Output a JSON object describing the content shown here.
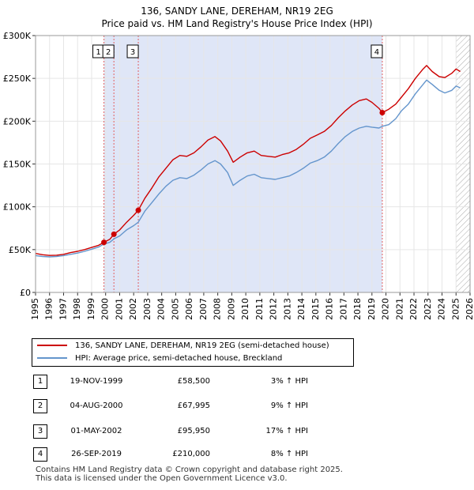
{
  "header": {
    "title": "136, SANDY LANE, DEREHAM, NR19 2EG",
    "subtitle": "Price paid vs. HM Land Registry's House Price Index (HPI)"
  },
  "chart_data": {
    "type": "line",
    "title": "136, SANDY LANE, DEREHAM, NR19 2EG",
    "subtitle": "Price paid vs. HM Land Registry's House Price Index (HPI)",
    "xlim": [
      1995,
      2026
    ],
    "ylim": [
      0,
      300000
    ],
    "x_ticks": [
      1995,
      1996,
      1997,
      1998,
      1999,
      2000,
      2001,
      2002,
      2003,
      2004,
      2005,
      2006,
      2007,
      2008,
      2009,
      2010,
      2011,
      2012,
      2013,
      2014,
      2015,
      2016,
      2017,
      2018,
      2019,
      2020,
      2021,
      2022,
      2023,
      2024,
      2025,
      2026
    ],
    "y_ticks": [
      {
        "value": 0,
        "label": "£0"
      },
      {
        "value": 50000,
        "label": "£50K"
      },
      {
        "value": 100000,
        "label": "£100K"
      },
      {
        "value": 150000,
        "label": "£150K"
      },
      {
        "value": 200000,
        "label": "£200K"
      },
      {
        "value": 250000,
        "label": "£250K"
      },
      {
        "value": 300000,
        "label": "£300K"
      }
    ],
    "grid": true,
    "shaded_ranges": [
      {
        "from": 1999.88,
        "to": 2019.74,
        "color": "#dfe6f7"
      }
    ],
    "hatch_from": 2025.0,
    "series": [
      {
        "name": "136, SANDY LANE, DEREHAM, NR19 2EG (semi-detached house)",
        "color": "#cc0000",
        "points": [
          [
            1995,
            45500
          ],
          [
            1995.5,
            44000
          ],
          [
            1996,
            43200
          ],
          [
            1996.5,
            43500
          ],
          [
            1997,
            44500
          ],
          [
            1997.5,
            46500
          ],
          [
            1998,
            48000
          ],
          [
            1998.5,
            50000
          ],
          [
            1999,
            52500
          ],
          [
            1999.5,
            55000
          ],
          [
            1999.88,
            58500
          ],
          [
            2000.3,
            62000
          ],
          [
            2000.59,
            67995
          ],
          [
            2001,
            73000
          ],
          [
            2001.5,
            82000
          ],
          [
            2002,
            90000
          ],
          [
            2002.33,
            95950
          ],
          [
            2002.8,
            110000
          ],
          [
            2003.3,
            122000
          ],
          [
            2003.8,
            135000
          ],
          [
            2004.3,
            145000
          ],
          [
            2004.8,
            155000
          ],
          [
            2005.3,
            160000
          ],
          [
            2005.8,
            159000
          ],
          [
            2006.3,
            163000
          ],
          [
            2006.8,
            170000
          ],
          [
            2007.3,
            178000
          ],
          [
            2007.8,
            182000
          ],
          [
            2008.2,
            177000
          ],
          [
            2008.7,
            165000
          ],
          [
            2009.1,
            152000
          ],
          [
            2009.6,
            158000
          ],
          [
            2010.1,
            163000
          ],
          [
            2010.6,
            165000
          ],
          [
            2011.1,
            160000
          ],
          [
            2011.6,
            159000
          ],
          [
            2012.1,
            158000
          ],
          [
            2012.6,
            161000
          ],
          [
            2013.1,
            163000
          ],
          [
            2013.6,
            167000
          ],
          [
            2014.1,
            173000
          ],
          [
            2014.6,
            180000
          ],
          [
            2015.1,
            184000
          ],
          [
            2015.6,
            188000
          ],
          [
            2016.1,
            195000
          ],
          [
            2016.6,
            204000
          ],
          [
            2017.1,
            212000
          ],
          [
            2017.6,
            219000
          ],
          [
            2018.1,
            224000
          ],
          [
            2018.6,
            226000
          ],
          [
            2019.0,
            222000
          ],
          [
            2019.5,
            215000
          ],
          [
            2019.74,
            210000
          ],
          [
            2020.2,
            214000
          ],
          [
            2020.7,
            220000
          ],
          [
            2021.1,
            228000
          ],
          [
            2021.6,
            238000
          ],
          [
            2022.1,
            250000
          ],
          [
            2022.6,
            260000
          ],
          [
            2022.9,
            265000
          ],
          [
            2023.3,
            258000
          ],
          [
            2023.8,
            252000
          ],
          [
            2024.2,
            251000
          ],
          [
            2024.7,
            256000
          ],
          [
            2025.0,
            261000
          ],
          [
            2025.3,
            258000
          ]
        ]
      },
      {
        "name": "HPI: Average price, semi-detached house, Breckland",
        "color": "#6495cc",
        "points": [
          [
            1995,
            43000
          ],
          [
            1995.5,
            42000
          ],
          [
            1996,
            41500
          ],
          [
            1996.5,
            42000
          ],
          [
            1997,
            43000
          ],
          [
            1997.5,
            44500
          ],
          [
            1998,
            46000
          ],
          [
            1998.5,
            48000
          ],
          [
            1999,
            50500
          ],
          [
            1999.5,
            53000
          ],
          [
            1999.88,
            56500
          ],
          [
            2000.3,
            58500
          ],
          [
            2000.59,
            62500
          ],
          [
            2001,
            66000
          ],
          [
            2001.5,
            73000
          ],
          [
            2002,
            78000
          ],
          [
            2002.33,
            82000
          ],
          [
            2002.8,
            95000
          ],
          [
            2003.3,
            105000
          ],
          [
            2003.8,
            115000
          ],
          [
            2004.3,
            124000
          ],
          [
            2004.8,
            131000
          ],
          [
            2005.3,
            134000
          ],
          [
            2005.8,
            133000
          ],
          [
            2006.3,
            137000
          ],
          [
            2006.8,
            143000
          ],
          [
            2007.3,
            150000
          ],
          [
            2007.8,
            154000
          ],
          [
            2008.2,
            150000
          ],
          [
            2008.7,
            140000
          ],
          [
            2009.1,
            125000
          ],
          [
            2009.6,
            131000
          ],
          [
            2010.1,
            136000
          ],
          [
            2010.6,
            138000
          ],
          [
            2011.1,
            134000
          ],
          [
            2011.6,
            133000
          ],
          [
            2012.1,
            132000
          ],
          [
            2012.6,
            134000
          ],
          [
            2013.1,
            136000
          ],
          [
            2013.6,
            140000
          ],
          [
            2014.1,
            145000
          ],
          [
            2014.6,
            151000
          ],
          [
            2015.1,
            154000
          ],
          [
            2015.6,
            158000
          ],
          [
            2016.1,
            165000
          ],
          [
            2016.6,
            174000
          ],
          [
            2017.1,
            182000
          ],
          [
            2017.6,
            188000
          ],
          [
            2018.1,
            192000
          ],
          [
            2018.6,
            194000
          ],
          [
            2019.0,
            193000
          ],
          [
            2019.5,
            192000
          ],
          [
            2019.74,
            194000
          ],
          [
            2020.2,
            196000
          ],
          [
            2020.7,
            203000
          ],
          [
            2021.1,
            212000
          ],
          [
            2021.6,
            220000
          ],
          [
            2022.1,
            232000
          ],
          [
            2022.6,
            242000
          ],
          [
            2022.9,
            248000
          ],
          [
            2023.3,
            243000
          ],
          [
            2023.8,
            236000
          ],
          [
            2024.2,
            233000
          ],
          [
            2024.7,
            236000
          ],
          [
            2025.0,
            241000
          ],
          [
            2025.3,
            239000
          ]
        ]
      }
    ],
    "markers": [
      {
        "label": "1",
        "x": 1999.88,
        "y": 58500
      },
      {
        "label": "2",
        "x": 2000.59,
        "y": 67995
      },
      {
        "label": "3",
        "x": 2002.33,
        "y": 95950
      },
      {
        "label": "4",
        "x": 2019.74,
        "y": 210000
      }
    ]
  },
  "legend": {
    "items": [
      {
        "label": "136, SANDY LANE, DEREHAM, NR19 2EG (semi-detached house)",
        "color": "#cc0000"
      },
      {
        "label": "HPI: Average price, semi-detached house, Breckland",
        "color": "#6495cc"
      }
    ]
  },
  "transactions": [
    {
      "num": "1",
      "date": "19-NOV-1999",
      "price": "£58,500",
      "hpi": "3% ↑ HPI"
    },
    {
      "num": "2",
      "date": "04-AUG-2000",
      "price": "£67,995",
      "hpi": "9% ↑ HPI"
    },
    {
      "num": "3",
      "date": "01-MAY-2002",
      "price": "£95,950",
      "hpi": "17% ↑ HPI"
    },
    {
      "num": "4",
      "date": "26-SEP-2019",
      "price": "£210,000",
      "hpi": "8% ↑ HPI"
    }
  ],
  "footer": {
    "line1": "Contains HM Land Registry data © Crown copyright and database right 2025.",
    "line2": "This data is licensed under the Open Government Licence v3.0."
  }
}
